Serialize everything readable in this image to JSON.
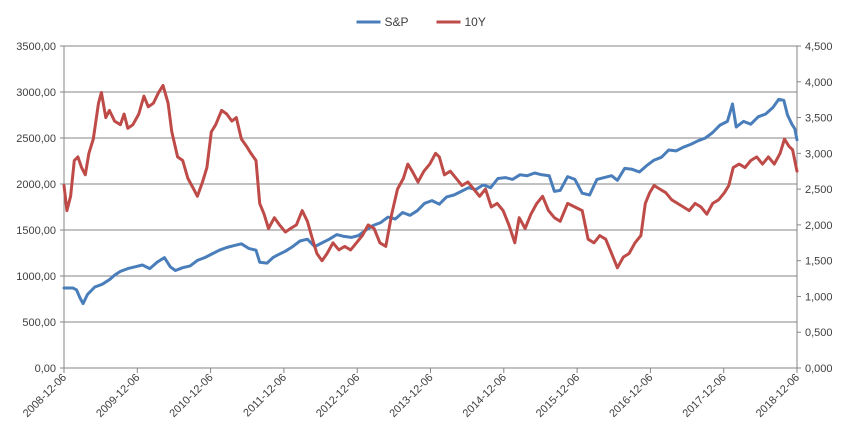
{
  "chart_data": {
    "type": "line",
    "legend_position": "top-center",
    "grid": "horizontal",
    "colors": {
      "S&P": "#4a7ebb",
      "10Y": "#be4b48",
      "grid": "#868686",
      "axis": "#868686"
    },
    "x_ticks": [
      "2008-12-06",
      "2009-12-06",
      "2010-12-06",
      "2011-12-06",
      "2012-12-06",
      "2013-12-06",
      "2014-12-06",
      "2015-12-06",
      "2016-12-06",
      "2017-12-06",
      "2018-12-06"
    ],
    "x_range": [
      2008.93,
      2018.93
    ],
    "y_left": {
      "ticks": [
        "0,00",
        "500,00",
        "1000,00",
        "1500,00",
        "2000,00",
        "2500,00",
        "3000,00",
        "3500,00"
      ],
      "range": [
        0,
        3500
      ]
    },
    "y_right": {
      "ticks": [
        "0,000",
        "0,500",
        "1,000",
        "1,500",
        "2,000",
        "2,500",
        "3,000",
        "3,500",
        "4,000",
        "4,500"
      ],
      "range": [
        0,
        4.5
      ]
    },
    "series": [
      {
        "name": "S&P",
        "axis": "left",
        "color": "#4a7ebb",
        "points": [
          [
            2008.93,
            870
          ],
          [
            2009.05,
            870
          ],
          [
            2009.1,
            850
          ],
          [
            2009.15,
            760
          ],
          [
            2009.19,
            700
          ],
          [
            2009.25,
            800
          ],
          [
            2009.35,
            880
          ],
          [
            2009.45,
            910
          ],
          [
            2009.55,
            960
          ],
          [
            2009.62,
            1010
          ],
          [
            2009.7,
            1050
          ],
          [
            2009.8,
            1080
          ],
          [
            2009.9,
            1100
          ],
          [
            2010.0,
            1120
          ],
          [
            2010.1,
            1080
          ],
          [
            2010.2,
            1150
          ],
          [
            2010.3,
            1200
          ],
          [
            2010.38,
            1100
          ],
          [
            2010.45,
            1060
          ],
          [
            2010.55,
            1090
          ],
          [
            2010.65,
            1110
          ],
          [
            2010.75,
            1170
          ],
          [
            2010.85,
            1200
          ],
          [
            2010.95,
            1240
          ],
          [
            2011.05,
            1280
          ],
          [
            2011.15,
            1310
          ],
          [
            2011.25,
            1330
          ],
          [
            2011.35,
            1350
          ],
          [
            2011.45,
            1300
          ],
          [
            2011.55,
            1280
          ],
          [
            2011.6,
            1150
          ],
          [
            2011.7,
            1140
          ],
          [
            2011.78,
            1200
          ],
          [
            2011.85,
            1230
          ],
          [
            2011.95,
            1270
          ],
          [
            2012.05,
            1320
          ],
          [
            2012.15,
            1380
          ],
          [
            2012.25,
            1400
          ],
          [
            2012.35,
            1320
          ],
          [
            2012.45,
            1360
          ],
          [
            2012.55,
            1400
          ],
          [
            2012.65,
            1450
          ],
          [
            2012.75,
            1430
          ],
          [
            2012.85,
            1420
          ],
          [
            2012.95,
            1440
          ],
          [
            2013.05,
            1500
          ],
          [
            2013.15,
            1550
          ],
          [
            2013.25,
            1580
          ],
          [
            2013.35,
            1640
          ],
          [
            2013.45,
            1620
          ],
          [
            2013.55,
            1690
          ],
          [
            2013.65,
            1660
          ],
          [
            2013.75,
            1710
          ],
          [
            2013.85,
            1790
          ],
          [
            2013.95,
            1820
          ],
          [
            2014.05,
            1780
          ],
          [
            2014.15,
            1860
          ],
          [
            2014.25,
            1880
          ],
          [
            2014.35,
            1920
          ],
          [
            2014.45,
            1960
          ],
          [
            2014.55,
            1940
          ],
          [
            2014.65,
            1990
          ],
          [
            2014.75,
            1960
          ],
          [
            2014.85,
            2060
          ],
          [
            2014.95,
            2070
          ],
          [
            2015.05,
            2050
          ],
          [
            2015.15,
            2100
          ],
          [
            2015.25,
            2090
          ],
          [
            2015.35,
            2120
          ],
          [
            2015.45,
            2100
          ],
          [
            2015.55,
            2090
          ],
          [
            2015.62,
            1920
          ],
          [
            2015.7,
            1930
          ],
          [
            2015.8,
            2080
          ],
          [
            2015.9,
            2050
          ],
          [
            2016.0,
            1900
          ],
          [
            2016.1,
            1880
          ],
          [
            2016.2,
            2050
          ],
          [
            2016.3,
            2070
          ],
          [
            2016.4,
            2090
          ],
          [
            2016.48,
            2040
          ],
          [
            2016.58,
            2170
          ],
          [
            2016.68,
            2160
          ],
          [
            2016.78,
            2130
          ],
          [
            2016.88,
            2200
          ],
          [
            2016.98,
            2260
          ],
          [
            2017.08,
            2290
          ],
          [
            2017.18,
            2370
          ],
          [
            2017.28,
            2360
          ],
          [
            2017.38,
            2400
          ],
          [
            2017.48,
            2430
          ],
          [
            2017.58,
            2470
          ],
          [
            2017.68,
            2500
          ],
          [
            2017.78,
            2560
          ],
          [
            2017.88,
            2640
          ],
          [
            2017.98,
            2680
          ],
          [
            2018.05,
            2870
          ],
          [
            2018.1,
            2620
          ],
          [
            2018.2,
            2680
          ],
          [
            2018.3,
            2650
          ],
          [
            2018.4,
            2730
          ],
          [
            2018.5,
            2760
          ],
          [
            2018.6,
            2830
          ],
          [
            2018.68,
            2920
          ],
          [
            2018.75,
            2910
          ],
          [
            2018.8,
            2750
          ],
          [
            2018.86,
            2650
          ],
          [
            2018.9,
            2600
          ],
          [
            2018.93,
            2480
          ]
        ]
      },
      {
        "name": "10Y",
        "axis": "right",
        "color": "#be4b48",
        "points": [
          [
            2008.93,
            2.55
          ],
          [
            2008.97,
            2.2
          ],
          [
            2009.02,
            2.4
          ],
          [
            2009.07,
            2.9
          ],
          [
            2009.12,
            2.95
          ],
          [
            2009.17,
            2.8
          ],
          [
            2009.22,
            2.7
          ],
          [
            2009.27,
            3.0
          ],
          [
            2009.33,
            3.2
          ],
          [
            2009.4,
            3.7
          ],
          [
            2009.44,
            3.85
          ],
          [
            2009.5,
            3.5
          ],
          [
            2009.55,
            3.6
          ],
          [
            2009.62,
            3.45
          ],
          [
            2009.7,
            3.4
          ],
          [
            2009.75,
            3.55
          ],
          [
            2009.8,
            3.35
          ],
          [
            2009.87,
            3.4
          ],
          [
            2009.95,
            3.55
          ],
          [
            2010.02,
            3.8
          ],
          [
            2010.08,
            3.65
          ],
          [
            2010.15,
            3.7
          ],
          [
            2010.22,
            3.85
          ],
          [
            2010.28,
            3.95
          ],
          [
            2010.35,
            3.7
          ],
          [
            2010.4,
            3.3
          ],
          [
            2010.48,
            2.95
          ],
          [
            2010.55,
            2.9
          ],
          [
            2010.62,
            2.65
          ],
          [
            2010.7,
            2.5
          ],
          [
            2010.75,
            2.4
          ],
          [
            2010.82,
            2.6
          ],
          [
            2010.88,
            2.8
          ],
          [
            2010.94,
            3.3
          ],
          [
            2011.0,
            3.4
          ],
          [
            2011.08,
            3.6
          ],
          [
            2011.15,
            3.55
          ],
          [
            2011.22,
            3.45
          ],
          [
            2011.28,
            3.5
          ],
          [
            2011.35,
            3.2
          ],
          [
            2011.42,
            3.1
          ],
          [
            2011.48,
            3.0
          ],
          [
            2011.55,
            2.9
          ],
          [
            2011.6,
            2.3
          ],
          [
            2011.66,
            2.15
          ],
          [
            2011.72,
            1.95
          ],
          [
            2011.8,
            2.1
          ],
          [
            2011.87,
            2.0
          ],
          [
            2011.95,
            1.9
          ],
          [
            2012.02,
            1.95
          ],
          [
            2012.1,
            2.0
          ],
          [
            2012.18,
            2.2
          ],
          [
            2012.25,
            2.05
          ],
          [
            2012.32,
            1.8
          ],
          [
            2012.38,
            1.6
          ],
          [
            2012.45,
            1.5
          ],
          [
            2012.52,
            1.6
          ],
          [
            2012.6,
            1.75
          ],
          [
            2012.68,
            1.65
          ],
          [
            2012.76,
            1.7
          ],
          [
            2012.84,
            1.65
          ],
          [
            2012.92,
            1.75
          ],
          [
            2013.0,
            1.85
          ],
          [
            2013.08,
            2.0
          ],
          [
            2013.16,
            1.95
          ],
          [
            2013.24,
            1.75
          ],
          [
            2013.32,
            1.7
          ],
          [
            2013.4,
            2.15
          ],
          [
            2013.48,
            2.5
          ],
          [
            2013.56,
            2.65
          ],
          [
            2013.62,
            2.85
          ],
          [
            2013.68,
            2.75
          ],
          [
            2013.76,
            2.6
          ],
          [
            2013.84,
            2.75
          ],
          [
            2013.92,
            2.85
          ],
          [
            2014.0,
            3.0
          ],
          [
            2014.05,
            2.95
          ],
          [
            2014.12,
            2.7
          ],
          [
            2014.2,
            2.75
          ],
          [
            2014.28,
            2.65
          ],
          [
            2014.36,
            2.55
          ],
          [
            2014.44,
            2.6
          ],
          [
            2014.52,
            2.5
          ],
          [
            2014.6,
            2.4
          ],
          [
            2014.68,
            2.5
          ],
          [
            2014.76,
            2.25
          ],
          [
            2014.84,
            2.3
          ],
          [
            2014.92,
            2.2
          ],
          [
            2015.0,
            2.0
          ],
          [
            2015.08,
            1.75
          ],
          [
            2015.14,
            2.1
          ],
          [
            2015.22,
            1.95
          ],
          [
            2015.3,
            2.15
          ],
          [
            2015.38,
            2.3
          ],
          [
            2015.46,
            2.4
          ],
          [
            2015.54,
            2.2
          ],
          [
            2015.62,
            2.1
          ],
          [
            2015.7,
            2.05
          ],
          [
            2015.8,
            2.3
          ],
          [
            2015.9,
            2.25
          ],
          [
            2016.0,
            2.2
          ],
          [
            2016.08,
            1.8
          ],
          [
            2016.16,
            1.75
          ],
          [
            2016.24,
            1.85
          ],
          [
            2016.32,
            1.8
          ],
          [
            2016.4,
            1.6
          ],
          [
            2016.48,
            1.4
          ],
          [
            2016.56,
            1.55
          ],
          [
            2016.64,
            1.6
          ],
          [
            2016.72,
            1.75
          ],
          [
            2016.8,
            1.85
          ],
          [
            2016.86,
            2.3
          ],
          [
            2016.92,
            2.45
          ],
          [
            2016.98,
            2.55
          ],
          [
            2017.06,
            2.5
          ],
          [
            2017.14,
            2.45
          ],
          [
            2017.22,
            2.35
          ],
          [
            2017.3,
            2.3
          ],
          [
            2017.38,
            2.25
          ],
          [
            2017.46,
            2.2
          ],
          [
            2017.54,
            2.3
          ],
          [
            2017.62,
            2.25
          ],
          [
            2017.7,
            2.15
          ],
          [
            2017.78,
            2.3
          ],
          [
            2017.86,
            2.35
          ],
          [
            2017.94,
            2.45
          ],
          [
            2018.0,
            2.55
          ],
          [
            2018.06,
            2.8
          ],
          [
            2018.14,
            2.85
          ],
          [
            2018.22,
            2.8
          ],
          [
            2018.3,
            2.9
          ],
          [
            2018.38,
            2.95
          ],
          [
            2018.46,
            2.85
          ],
          [
            2018.54,
            2.95
          ],
          [
            2018.62,
            2.85
          ],
          [
            2018.7,
            3.0
          ],
          [
            2018.76,
            3.2
          ],
          [
            2018.82,
            3.1
          ],
          [
            2018.87,
            3.05
          ],
          [
            2018.91,
            2.85
          ],
          [
            2018.93,
            2.75
          ]
        ]
      }
    ]
  }
}
